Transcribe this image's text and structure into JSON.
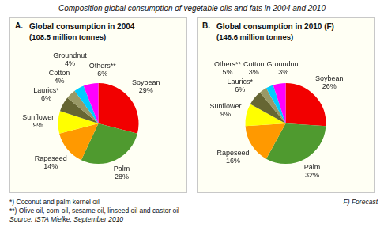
{
  "title": "Composition global consumption of vegetable oils and fats in 2004 and 2010",
  "chart_data": [
    {
      "type": "pie",
      "panel": "A.",
      "title": "Global consumption in 2004",
      "subtitle": "(108.5 million tonnes)",
      "categories": [
        "Soybean",
        "Palm",
        "Rapeseed",
        "Sunflower",
        "Laurics*",
        "Cotton",
        "Groundnut",
        "Others**"
      ],
      "values": [
        29,
        28,
        14,
        9,
        6,
        4,
        4,
        6
      ],
      "value_labels": [
        "29%",
        "28%",
        "14%",
        "9%",
        "6%",
        "4%",
        "4%",
        "6%"
      ],
      "colors": [
        "#f20000",
        "#4f9a2f",
        "#ff9900",
        "#ffff00",
        "#666633",
        "#999966",
        "#00ccff",
        "#ff00ff"
      ],
      "data_labels": true
    },
    {
      "type": "pie",
      "panel": "B.",
      "title": "Global consumption in 2010 (F)",
      "subtitle": "(146.6 million tonnes)",
      "categories": [
        "Soybean",
        "Palm",
        "Rapeseed",
        "Sunflower",
        "Laurics*",
        "Cotton",
        "Groundnut",
        "Others**"
      ],
      "values": [
        26,
        32,
        16,
        9,
        6,
        3,
        3,
        5
      ],
      "value_labels": [
        "26%",
        "32%",
        "16%",
        "9%",
        "6%",
        "3%",
        "3%",
        "5%"
      ],
      "colors": [
        "#f20000",
        "#4f9a2f",
        "#ff9900",
        "#ffff00",
        "#666633",
        "#999966",
        "#00ccff",
        "#ff00ff"
      ],
      "data_labels": true,
      "annotations": [
        "F) Forecast"
      ]
    }
  ],
  "annotations": [
    "*) Coconut and palm kernel oil",
    "**) Olive oil, corn oil, sesame oil, linseed oil and castor oil"
  ],
  "source": "Source: ISTA Mielke, September 2010"
}
